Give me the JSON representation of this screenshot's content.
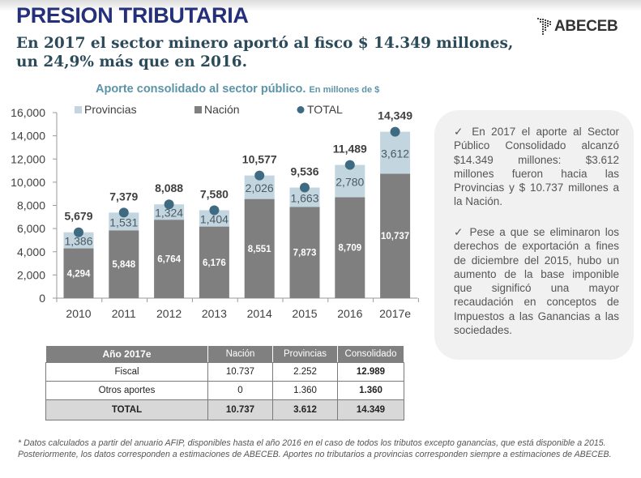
{
  "header": {
    "title": "PRESION TRIBUTARIA",
    "subtitle_line1": "En 2017 el sector minero aportó al fisco $ 14.349 millones,",
    "subtitle_line2": "un 24,9% más que en 2016.",
    "logo_text": "ABECEB"
  },
  "chart_title": {
    "main": "Aporte consolidado al sector público.",
    "unit": "En millones de $"
  },
  "chart_data": {
    "type": "bar",
    "stacked": true,
    "title": "Aporte consolidado al sector público. En millones de $",
    "xlabel": "",
    "ylabel": "",
    "categories": [
      "2010",
      "2011",
      "2012",
      "2013",
      "2014",
      "2015",
      "2016",
      "2017e"
    ],
    "series": [
      {
        "name": "Nación",
        "color": "#7f7f7f",
        "values": [
          4294,
          5848,
          6764,
          6176,
          8551,
          7873,
          8709,
          10737
        ]
      },
      {
        "name": "Provincias",
        "color": "#c3d6df",
        "values": [
          1386,
          1531,
          1324,
          1404,
          2026,
          1663,
          2780,
          3612
        ]
      },
      {
        "name": "TOTAL",
        "type": "scatter",
        "color": "#3e6b82",
        "values": [
          5679,
          7379,
          8088,
          7580,
          10577,
          9536,
          11489,
          14349
        ]
      }
    ],
    "ylim": [
      0,
      16000
    ],
    "yticks": [
      0,
      2000,
      4000,
      6000,
      8000,
      10000,
      12000,
      14000,
      16000
    ],
    "ytick_labels": [
      "0",
      "2,000",
      "4,000",
      "6,000",
      "8,000",
      "10,000",
      "12,000",
      "14,000",
      "16,000"
    ],
    "legend": [
      "Provincias",
      "Nación",
      "TOTAL"
    ],
    "legend_position": "top",
    "grid": false,
    "data_labels": {
      "nacion": [
        "4,294",
        "5,848",
        "6,764",
        "6,176",
        "8,551",
        "7,873",
        "8,709",
        "10,737"
      ],
      "provincias": [
        "1,386",
        "1,531",
        "1,324",
        "1,404",
        "2,026",
        "1,663",
        "2,780",
        "3,612"
      ],
      "total": [
        "5,679",
        "7,379",
        "8,088",
        "7,580",
        "10,577",
        "9,536",
        "11,489",
        "14,349"
      ]
    }
  },
  "notes": [
    "✓ En 2017 el aporte al Sector Público Consolidado alcanzó $14.349 millones: $3.612 millones fueron hacia las Provincias y $ 10.737 millones a la Nación.",
    "✓ Pese a que se eliminaron los derechos de exportación a fines de diciembre del 2015, hubo un aumento de la base imponible que significó una mayor recaudación en conceptos de Impuestos a las Ganancias a las sociedades."
  ],
  "table": {
    "headers": [
      "Año 2017e",
      "Nación",
      "Provincias",
      "Consolidado"
    ],
    "rows": [
      [
        "Fiscal",
        "10.737",
        "2.252",
        "12.989"
      ],
      [
        "Otros aportes",
        "0",
        "1.360",
        "1.360"
      ],
      [
        "TOTAL",
        "10.737",
        "3.612",
        "14.349"
      ]
    ]
  },
  "footnote": "* Datos calculados a partir del anuario AFIP, disponibles hasta el año 2016 en el caso de todos los tributos excepto ganancias, que está disponible a 2015. Posteriormente, los datos corresponden a estimaciones de ABECEB. Aportes no tributarios a provincias corresponden siempre a estimaciones de ABECEB."
}
